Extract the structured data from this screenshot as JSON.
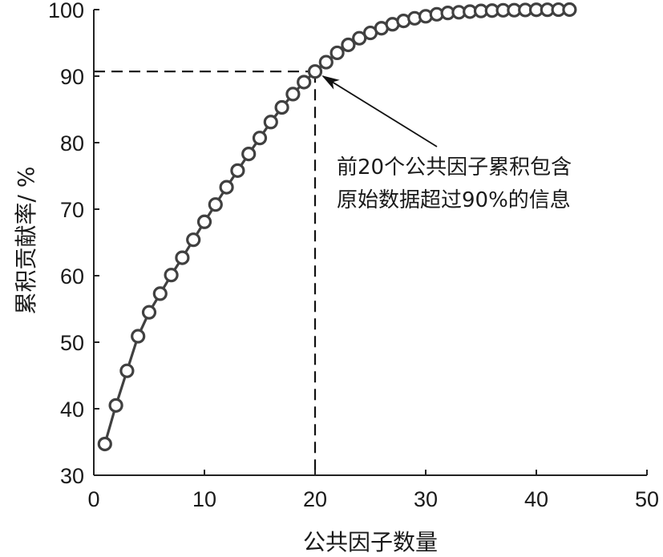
{
  "chart_data": {
    "type": "line",
    "title": "",
    "xlabel": "公共因子数量",
    "ylabel": "累积贡献率/ %",
    "xlim": [
      0,
      50
    ],
    "ylim": [
      30,
      100
    ],
    "xticks": [
      "0",
      "10",
      "20",
      "30",
      "40",
      "50"
    ],
    "yticks": [
      "30",
      "40",
      "50",
      "60",
      "70",
      "80",
      "90",
      "100"
    ],
    "grid": false,
    "legend": "none",
    "line_color": "#404040",
    "marker": "circle",
    "x": [
      1,
      2,
      3,
      4,
      5,
      6,
      7,
      8,
      9,
      10,
      11,
      12,
      13,
      14,
      15,
      16,
      17,
      18,
      19,
      20,
      21,
      22,
      23,
      24,
      25,
      26,
      27,
      28,
      29,
      30,
      31,
      32,
      33,
      34,
      35,
      36,
      37,
      38,
      39,
      40,
      41,
      42,
      43
    ],
    "y": [
      34.7,
      40.5,
      45.7,
      50.9,
      54.5,
      57.3,
      60.1,
      62.7,
      65.4,
      68.1,
      70.7,
      73.3,
      75.8,
      78.3,
      80.7,
      83.1,
      85.3,
      87.3,
      89.1,
      90.7,
      92.1,
      93.5,
      94.7,
      95.7,
      96.5,
      97.2,
      97.8,
      98.3,
      98.7,
      99.0,
      99.3,
      99.5,
      99.6,
      99.7,
      99.8,
      99.85,
      99.9,
      99.92,
      99.95,
      99.97,
      99.98,
      99.99,
      100.0
    ],
    "reference": {
      "x": 20,
      "y": 90.7,
      "style": "dashed"
    },
    "annotation": {
      "lines": [
        "前20个公共因子累积包含",
        "原始数据超过90%的信息"
      ],
      "arrow_to": {
        "x": 20,
        "y": 90.7
      }
    }
  }
}
